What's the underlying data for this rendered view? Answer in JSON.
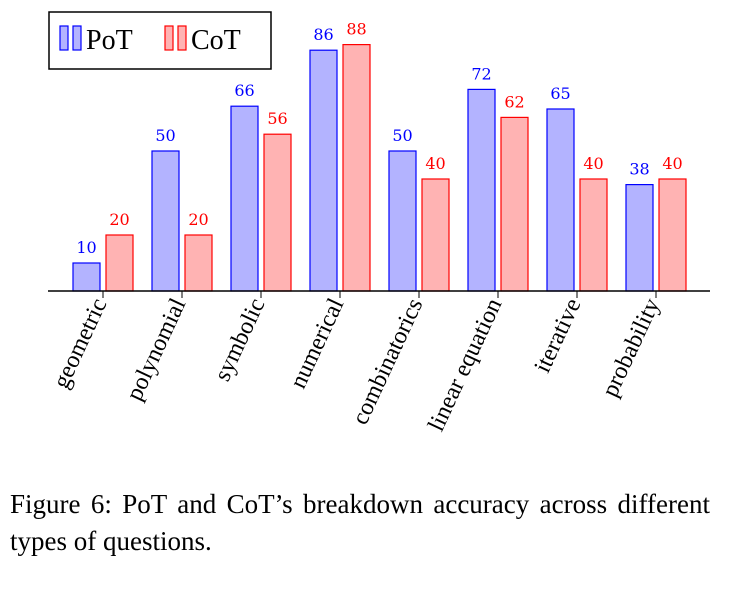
{
  "chart_data": {
    "type": "bar",
    "categories": [
      "geometric",
      "polynomial",
      "symbolic",
      "numerical",
      "combinatorics",
      "linear equation",
      "iterative",
      "probability"
    ],
    "series": [
      {
        "name": "PoT",
        "values": [
          10,
          50,
          66,
          86,
          50,
          72,
          65,
          38
        ]
      },
      {
        "name": "CoT",
        "values": [
          20,
          20,
          56,
          88,
          40,
          62,
          40,
          40
        ]
      }
    ],
    "colors": {
      "PoT": {
        "fill": "#b3b3ff",
        "stroke": "#0000ff",
        "label": "#0000ff"
      },
      "CoT": {
        "fill": "#ffb3b3",
        "stroke": "#ff0000",
        "label": "#ff0000"
      }
    },
    "ylim": [
      0,
      100
    ],
    "legend_position": "top-left",
    "data_labels": true,
    "grid": false
  },
  "caption": "Figure 6: PoT and CoT’s breakdown accuracy across different types of questions."
}
